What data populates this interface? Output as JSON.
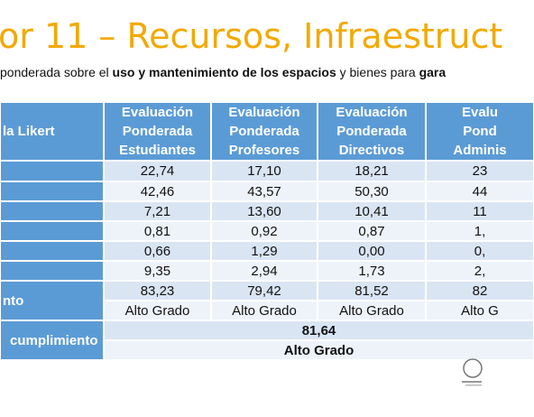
{
  "title": "or 11 – Recursos, Infraestruct",
  "subtitle": [
    {
      "text": "ponderada sobre el ",
      "bold": false
    },
    {
      "text": "uso y mantenimiento de los espacios",
      "bold": true
    },
    {
      "text": " y bienes para ",
      "bold": false
    },
    {
      "text": "gara",
      "bold": true
    }
  ],
  "table": {
    "header_label": "la Likert",
    "headers": [
      "Evaluación\nPonderada\nEstudiantes",
      "Evaluación\nPonderada\nProfesores",
      "Evaluación\nPonderada\nDirectivos",
      "Evalu\nPond\nAdminis"
    ],
    "rows": [
      [
        "22,74",
        "17,10",
        "18,21",
        "23"
      ],
      [
        "42,46",
        "43,57",
        "50,30",
        "44"
      ],
      [
        "7,21",
        "13,60",
        "10,41",
        "11"
      ],
      [
        "0,81",
        "0,92",
        "0,87",
        "1,"
      ],
      [
        "0,66",
        "1,29",
        "0,00",
        "0,"
      ],
      [
        "9,35",
        "2,94",
        "1,73",
        "2,"
      ],
      [
        "83,23",
        "79,42",
        "81,52",
        "82"
      ],
      [
        "Alto Grado",
        "Alto Grado",
        "Alto Grado",
        "Alto G"
      ]
    ],
    "group_label": "nto",
    "summary_label": "cumplimiento",
    "summary_value": "81,64",
    "summary_grade": "Alto Grado"
  }
}
